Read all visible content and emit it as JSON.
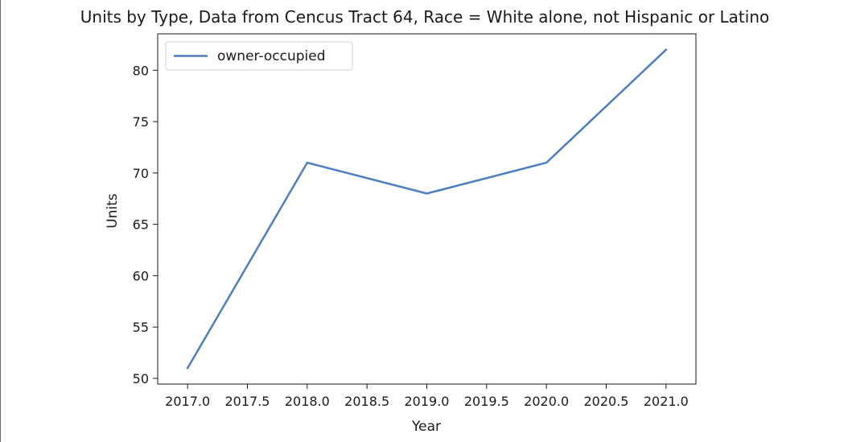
{
  "chart_data": {
    "type": "line",
    "title": "Units by Type, Data from Cencus Tract 64, Race = White alone, not Hispanic or Latino",
    "xlabel": "Year",
    "ylabel": "Units",
    "x": [
      2017,
      2018,
      2019,
      2020,
      2021
    ],
    "series": [
      {
        "name": "owner-occupied",
        "values": [
          51,
          71,
          68,
          71,
          82
        ],
        "color": "#4c7fbf"
      }
    ],
    "xlim": [
      2016.75,
      2021.25
    ],
    "ylim": [
      49.45,
      83.55
    ],
    "x_ticks": [
      "2017.0",
      "2017.5",
      "2018.0",
      "2018.5",
      "2019.0",
      "2019.5",
      "2020.0",
      "2020.5",
      "2021.0"
    ],
    "x_tick_values": [
      2017.0,
      2017.5,
      2018.0,
      2018.5,
      2019.0,
      2019.5,
      2020.0,
      2020.5,
      2021.0
    ],
    "y_ticks": [
      "50",
      "55",
      "60",
      "65",
      "70",
      "75",
      "80"
    ],
    "y_tick_values": [
      50,
      55,
      60,
      65,
      70,
      75,
      80
    ],
    "grid": false,
    "legend": "top-left"
  }
}
